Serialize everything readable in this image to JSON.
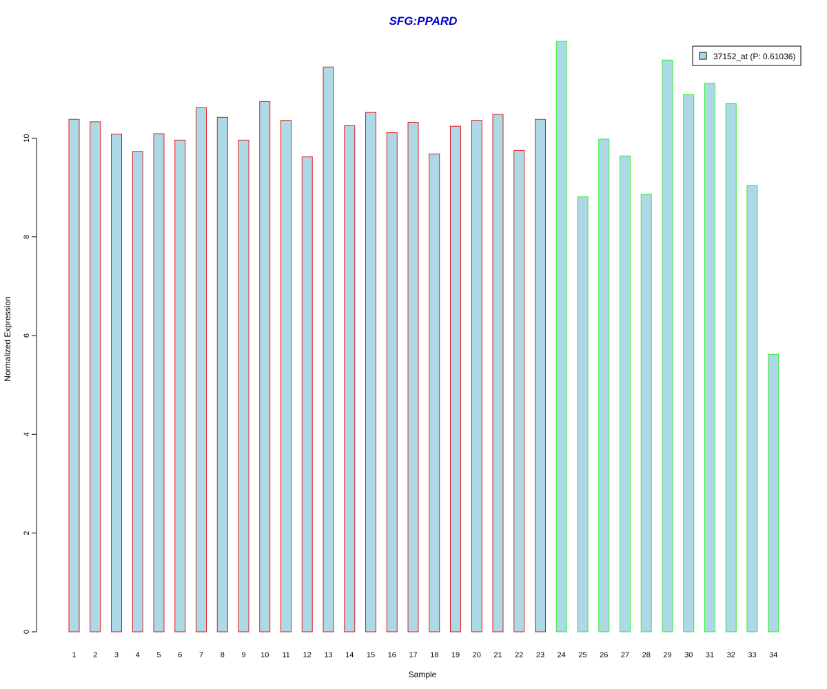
{
  "chart_data": {
    "type": "bar",
    "title": "SFG:PPARD",
    "xlabel": "Sample",
    "ylabel": "Normalized Expression",
    "categories": [
      "1",
      "2",
      "3",
      "4",
      "5",
      "6",
      "7",
      "8",
      "9",
      "10",
      "11",
      "12",
      "13",
      "14",
      "15",
      "16",
      "17",
      "18",
      "19",
      "20",
      "21",
      "22",
      "23",
      "24",
      "25",
      "26",
      "27",
      "28",
      "29",
      "30",
      "31",
      "32",
      "33",
      "34"
    ],
    "series": [
      {
        "name": "37152_at (P: 0.61036)",
        "values": [
          10.38,
          10.33,
          10.08,
          9.73,
          10.09,
          9.96,
          10.62,
          10.42,
          9.96,
          10.74,
          10.36,
          9.62,
          11.44,
          10.25,
          10.52,
          10.11,
          10.32,
          9.68,
          10.24,
          10.36,
          10.48,
          9.75,
          10.38,
          11.96,
          8.81,
          9.98,
          9.64,
          8.86,
          11.58,
          10.88,
          11.11,
          10.7,
          9.04,
          5.62
        ]
      }
    ],
    "group_outline_colors": [
      "#e31a1c",
      "#e31a1c",
      "#e31a1c",
      "#e31a1c",
      "#e31a1c",
      "#e31a1c",
      "#e31a1c",
      "#e31a1c",
      "#e31a1c",
      "#e31a1c",
      "#e31a1c",
      "#e31a1c",
      "#e31a1c",
      "#e31a1c",
      "#e31a1c",
      "#e31a1c",
      "#e31a1c",
      "#e31a1c",
      "#e31a1c",
      "#e31a1c",
      "#e31a1c",
      "#e31a1c",
      "#e31a1c",
      "#33ee33",
      "#33ee33",
      "#33ee33",
      "#33ee33",
      "#33ee33",
      "#33ee33",
      "#33ee33",
      "#33ee33",
      "#33ee33",
      "#33ee33",
      "#33ee33"
    ],
    "yticks": [
      0,
      2,
      4,
      6,
      8,
      10
    ],
    "ylim": [
      0,
      12
    ],
    "bar_fill": "#add8e6",
    "title_color": "#0000cd",
    "grid": false,
    "legend_position": "top-right"
  }
}
